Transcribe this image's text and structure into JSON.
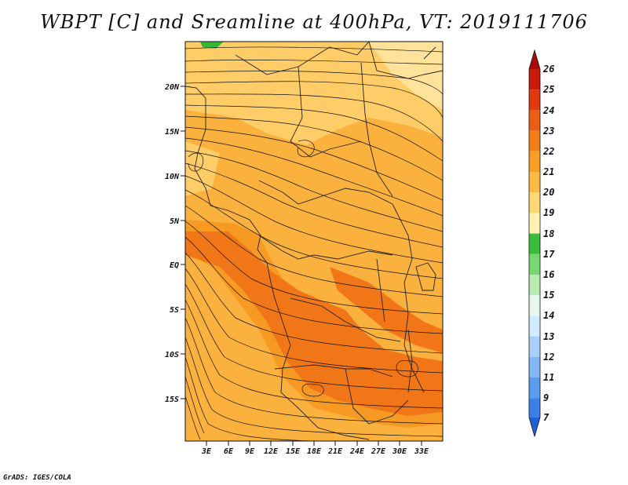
{
  "title": "WBPT [C] and Sreamline at 400hPa, VT: 2019111706",
  "credit": "GrADS: IGES/COLA",
  "map": {
    "lon_range": [
      0,
      36
    ],
    "lat_range": [
      -20,
      25
    ],
    "x_ticks": [
      "3E",
      "6E",
      "9E",
      "12E",
      "15E",
      "18E",
      "21E",
      "24E",
      "27E",
      "30E",
      "33E"
    ],
    "y_ticks": [
      "20N",
      "15N",
      "10N",
      "5N",
      "EQ",
      "5S",
      "10S",
      "15S"
    ],
    "fill_colors": {
      "band_18_19": "#ffe39a",
      "band_19_20": "#ffcd68",
      "band_20_21": "#fbb13d",
      "band_21_22": "#f69a24",
      "band_22_23": "#f07618",
      "band_23_24": "#eb5a10",
      "green": "#33b833"
    }
  },
  "colorbar": {
    "labels": [
      "7",
      "9",
      "11",
      "12",
      "13",
      "14",
      "15",
      "16",
      "17",
      "18",
      "19",
      "20",
      "21",
      "22",
      "23",
      "24",
      "25",
      "26"
    ],
    "colors": [
      "#1f5fd8",
      "#3b80e8",
      "#5a9cf0",
      "#82b8f5",
      "#a8d0fa",
      "#d2ebff",
      "#e8f8ee",
      "#b8ecb0",
      "#78d870",
      "#3cbc3c",
      "#fff2b4",
      "#ffd873",
      "#fbbb45",
      "#f79e25",
      "#f27f18",
      "#ec5c12",
      "#e23a0e",
      "#c81a08",
      "#a80a05"
    ]
  }
}
